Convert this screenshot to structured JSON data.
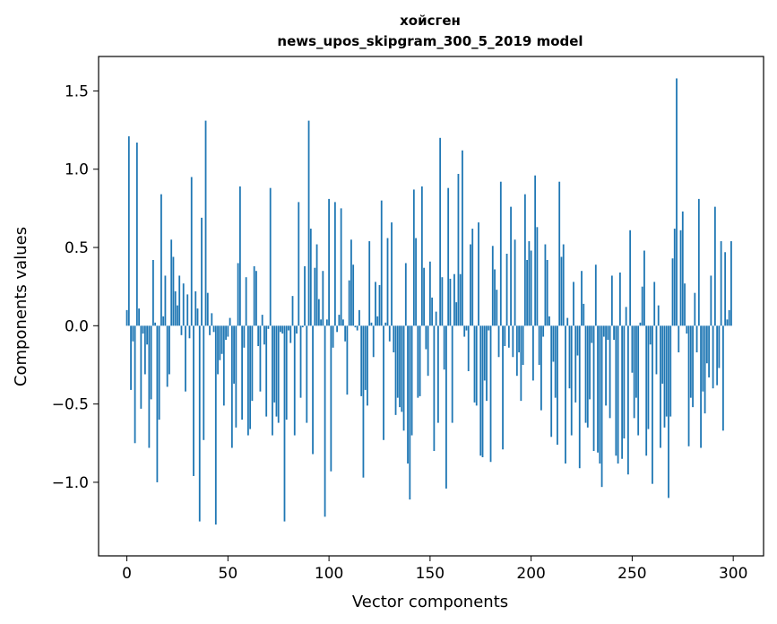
{
  "chart_data": {
    "type": "bar",
    "title_lines": [
      "хойсген",
      "news_upos_skipgram_300_5_2019 model"
    ],
    "xlabel": "Vector components",
    "ylabel": "Components values",
    "xlim": [
      -14,
      315
    ],
    "ylim": [
      -1.47,
      1.72
    ],
    "xticks": [
      0,
      50,
      100,
      150,
      200,
      250,
      300
    ],
    "yticks": [
      -1.0,
      -0.5,
      0.0,
      0.5,
      1.0,
      1.5
    ],
    "ytick_labels": [
      "−1.0",
      "−0.5",
      "0.0",
      "0.5",
      "1.0",
      "1.5"
    ],
    "bar_color": "#1f77b4",
    "grid": false,
    "legend": "none",
    "values": [
      0.1,
      1.21,
      -0.41,
      -0.1,
      -0.75,
      1.17,
      0.11,
      -0.53,
      -0.05,
      -0.31,
      -0.12,
      -0.78,
      -0.47,
      0.42,
      0.02,
      -1.0,
      -0.6,
      0.84,
      0.06,
      0.32,
      -0.39,
      -0.31,
      0.55,
      0.44,
      0.22,
      0.13,
      0.32,
      -0.06,
      0.27,
      -0.42,
      0.2,
      -0.08,
      0.95,
      -0.96,
      0.22,
      0.11,
      -1.25,
      0.69,
      -0.73,
      1.31,
      0.21,
      -0.06,
      0.08,
      -0.04,
      -1.27,
      -0.31,
      -0.22,
      -0.18,
      -0.51,
      -0.09,
      -0.07,
      0.05,
      -0.78,
      -0.37,
      -0.65,
      0.4,
      0.89,
      -0.6,
      -0.14,
      0.31,
      -0.7,
      -0.66,
      -0.48,
      0.38,
      0.35,
      -0.13,
      -0.42,
      0.07,
      -0.12,
      -0.58,
      -0.02,
      0.88,
      -0.7,
      -0.49,
      -0.58,
      -0.62,
      -0.04,
      -0.05,
      -1.25,
      -0.6,
      -0.03,
      -0.11,
      0.19,
      -0.7,
      -0.05,
      0.79,
      -0.46,
      -0.01,
      0.38,
      -0.62,
      1.31,
      0.62,
      -0.82,
      0.37,
      0.52,
      0.17,
      0.04,
      0.35,
      -1.22,
      0.04,
      0.81,
      -0.93,
      -0.14,
      0.79,
      -0.04,
      0.07,
      0.75,
      0.04,
      -0.1,
      -0.44,
      0.29,
      0.55,
      0.39,
      -0.01,
      -0.03,
      0.1,
      -0.45,
      -0.97,
      -0.41,
      -0.51,
      0.54,
      0.02,
      -0.2,
      0.28,
      0.06,
      0.26,
      0.8,
      -0.73,
      0.02,
      0.56,
      -0.1,
      0.66,
      -0.17,
      -0.57,
      -0.46,
      -0.52,
      -0.55,
      -0.67,
      0.4,
      -0.88,
      -1.11,
      -0.7,
      0.87,
      0.56,
      -0.46,
      -0.45,
      0.89,
      0.37,
      -0.15,
      -0.32,
      0.41,
      0.18,
      -0.8,
      0.09,
      -0.62,
      1.2,
      0.31,
      -0.28,
      -1.04,
      0.88,
      0.3,
      -0.62,
      0.33,
      0.15,
      0.97,
      0.33,
      1.12,
      -0.07,
      -0.03,
      -0.29,
      0.52,
      0.62,
      -0.49,
      -0.51,
      0.66,
      -0.83,
      -0.84,
      -0.35,
      -0.48,
      -0.03,
      -0.87,
      0.51,
      0.36,
      0.23,
      -0.2,
      0.92,
      -0.79,
      -0.13,
      0.46,
      -0.14,
      0.76,
      -0.2,
      0.55,
      -0.32,
      -0.17,
      -0.48,
      -0.25,
      0.84,
      0.42,
      0.54,
      0.48,
      -0.35,
      0.96,
      0.63,
      -0.25,
      -0.54,
      -0.07,
      0.52,
      0.42,
      0.06,
      -0.71,
      -0.23,
      -0.46,
      -0.76,
      0.92,
      0.44,
      0.52,
      -0.88,
      0.05,
      -0.4,
      -0.7,
      0.28,
      -0.49,
      -0.19,
      -0.91,
      0.35,
      0.14,
      -0.62,
      -0.65,
      -0.47,
      -0.11,
      -0.8,
      0.39,
      -0.81,
      -0.88,
      -1.03,
      -0.07,
      -0.51,
      -0.09,
      -0.59,
      0.32,
      -0.09,
      -0.83,
      -0.88,
      0.34,
      -0.85,
      -0.72,
      0.12,
      -0.95,
      0.61,
      -0.3,
      -0.59,
      -0.46,
      -0.7,
      0.02,
      0.25,
      0.48,
      -0.83,
      -0.66,
      -0.12,
      -1.01,
      0.28,
      -0.31,
      0.13,
      -0.78,
      -0.37,
      -0.65,
      -0.58,
      -1.1,
      -0.58,
      0.43,
      0.62,
      1.58,
      -0.17,
      0.61,
      0.73,
      0.27,
      -0.05,
      -0.77,
      -0.46,
      -0.52,
      0.21,
      -0.17,
      0.81,
      -0.78,
      -0.42,
      -0.56,
      -0.24,
      -0.33,
      0.32,
      -0.4,
      0.76,
      -0.38,
      -0.27,
      0.54,
      -0.67,
      0.47,
      0.04,
      0.1,
      0.54
    ]
  }
}
